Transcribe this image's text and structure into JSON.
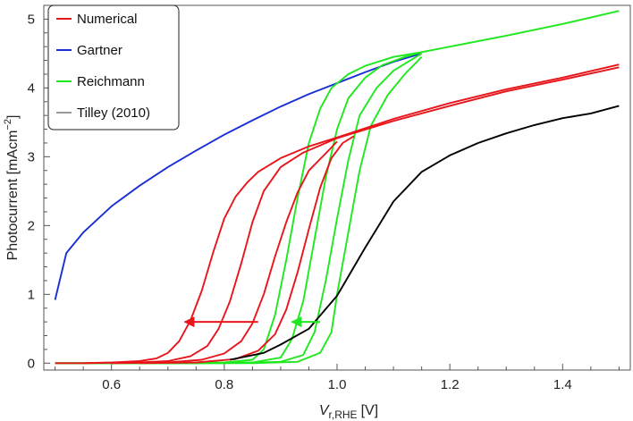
{
  "chart_data": {
    "type": "line",
    "title": "",
    "xlabel_main": "V",
    "xlabel_sub": "r,RHE",
    "xlabel_unit": "[V]",
    "ylabel_main": "Photocurrent [mAcm",
    "ylabel_sup": "−2",
    "ylabel_close": "]",
    "xlim": [
      0.48,
      1.52
    ],
    "ylim": [
      -0.1,
      5.2
    ],
    "x_ticks": [
      0.6,
      0.8,
      1.0,
      1.2,
      1.4
    ],
    "x_tick_labels": [
      "0.6",
      "0.8",
      "1.0",
      "1.2",
      "1.4"
    ],
    "y_ticks": [
      0,
      1,
      2,
      3,
      4,
      5
    ],
    "y_tick_labels": [
      "0",
      "1",
      "2",
      "3",
      "4",
      "5"
    ],
    "legend_position": "top-left",
    "legend": [
      {
        "label": "Numerical",
        "color": "#e8151b"
      },
      {
        "label": "Gartner",
        "color": "#1a2fd6"
      },
      {
        "label": "Reichmann",
        "color": "#1ee81e"
      },
      {
        "label": "Tilley (2010)",
        "color": "#999999"
      }
    ],
    "series": [
      {
        "name": "Gartner",
        "color": "#1a2fd6",
        "points": [
          [
            0.5,
            0.92
          ],
          [
            0.52,
            1.6
          ],
          [
            0.55,
            1.9
          ],
          [
            0.6,
            2.28
          ],
          [
            0.65,
            2.58
          ],
          [
            0.7,
            2.85
          ],
          [
            0.75,
            3.09
          ],
          [
            0.8,
            3.32
          ],
          [
            0.85,
            3.53
          ],
          [
            0.9,
            3.73
          ],
          [
            0.95,
            3.91
          ],
          [
            1.0,
            4.07
          ],
          [
            1.05,
            4.23
          ],
          [
            1.1,
            4.38
          ],
          [
            1.15,
            4.5
          ]
        ]
      },
      {
        "name": "Reichmann 1",
        "color": "#1ee81e",
        "points": [
          [
            0.5,
            0.0
          ],
          [
            0.7,
            0.0
          ],
          [
            0.8,
            0.01
          ],
          [
            0.85,
            0.05
          ],
          [
            0.87,
            0.2
          ],
          [
            0.89,
            0.7
          ],
          [
            0.91,
            1.5
          ],
          [
            0.93,
            2.4
          ],
          [
            0.95,
            3.2
          ],
          [
            0.97,
            3.7
          ],
          [
            0.99,
            4.0
          ],
          [
            1.02,
            4.2
          ],
          [
            1.05,
            4.32
          ],
          [
            1.1,
            4.45
          ],
          [
            1.15,
            4.52
          ],
          [
            1.2,
            4.6
          ],
          [
            1.3,
            4.76
          ],
          [
            1.4,
            4.93
          ],
          [
            1.5,
            5.12
          ]
        ]
      },
      {
        "name": "Reichmann 2",
        "color": "#1ee81e",
        "points": [
          [
            0.5,
            0.0
          ],
          [
            0.75,
            0.0
          ],
          [
            0.85,
            0.01
          ],
          [
            0.9,
            0.08
          ],
          [
            0.92,
            0.35
          ],
          [
            0.94,
            0.9
          ],
          [
            0.96,
            1.8
          ],
          [
            0.98,
            2.7
          ],
          [
            1.0,
            3.4
          ],
          [
            1.02,
            3.85
          ],
          [
            1.05,
            4.15
          ],
          [
            1.08,
            4.33
          ],
          [
            1.12,
            4.45
          ],
          [
            1.15,
            4.52
          ]
        ]
      },
      {
        "name": "Reichmann 3",
        "color": "#1ee81e",
        "points": [
          [
            0.5,
            0.0
          ],
          [
            0.8,
            0.0
          ],
          [
            0.9,
            0.02
          ],
          [
            0.94,
            0.12
          ],
          [
            0.96,
            0.45
          ],
          [
            0.98,
            1.2
          ],
          [
            1.0,
            2.1
          ],
          [
            1.02,
            2.95
          ],
          [
            1.04,
            3.6
          ],
          [
            1.07,
            4.0
          ],
          [
            1.1,
            4.25
          ],
          [
            1.13,
            4.4
          ],
          [
            1.15,
            4.5
          ]
        ]
      },
      {
        "name": "Reichmann 4",
        "color": "#1ee81e",
        "points": [
          [
            0.5,
            0.0
          ],
          [
            0.85,
            0.0
          ],
          [
            0.93,
            0.02
          ],
          [
            0.97,
            0.15
          ],
          [
            0.99,
            0.45
          ],
          [
            1.0,
            1.0
          ],
          [
            1.02,
            1.9
          ],
          [
            1.04,
            2.8
          ],
          [
            1.06,
            3.45
          ],
          [
            1.09,
            3.9
          ],
          [
            1.12,
            4.2
          ],
          [
            1.15,
            4.45
          ]
        ]
      },
      {
        "name": "Numerical 1",
        "color": "#e8151b",
        "points": [
          [
            0.5,
            0.0
          ],
          [
            0.55,
            0.0
          ],
          [
            0.6,
            0.01
          ],
          [
            0.65,
            0.03
          ],
          [
            0.68,
            0.07
          ],
          [
            0.7,
            0.15
          ],
          [
            0.72,
            0.32
          ],
          [
            0.74,
            0.62
          ],
          [
            0.76,
            1.05
          ],
          [
            0.78,
            1.6
          ],
          [
            0.8,
            2.1
          ],
          [
            0.82,
            2.42
          ],
          [
            0.84,
            2.62
          ],
          [
            0.86,
            2.78
          ],
          [
            0.9,
            2.98
          ],
          [
            0.95,
            3.15
          ],
          [
            1.0,
            3.28
          ],
          [
            1.1,
            3.55
          ],
          [
            1.2,
            3.78
          ],
          [
            1.3,
            3.98
          ],
          [
            1.4,
            4.15
          ],
          [
            1.5,
            4.34
          ]
        ]
      },
      {
        "name": "Numerical 2",
        "color": "#e8151b",
        "points": [
          [
            0.55,
            0.0
          ],
          [
            0.65,
            0.01
          ],
          [
            0.7,
            0.03
          ],
          [
            0.74,
            0.1
          ],
          [
            0.77,
            0.25
          ],
          [
            0.79,
            0.5
          ],
          [
            0.81,
            0.9
          ],
          [
            0.83,
            1.45
          ],
          [
            0.85,
            2.05
          ],
          [
            0.87,
            2.5
          ],
          [
            0.9,
            2.85
          ],
          [
            0.94,
            3.06
          ],
          [
            1.0,
            3.27
          ],
          [
            1.1,
            3.52
          ],
          [
            1.2,
            3.74
          ],
          [
            1.3,
            3.95
          ],
          [
            1.4,
            4.12
          ],
          [
            1.5,
            4.3
          ]
        ]
      },
      {
        "name": "Numerical 3",
        "color": "#e8151b",
        "points": [
          [
            0.6,
            0.0
          ],
          [
            0.7,
            0.01
          ],
          [
            0.76,
            0.05
          ],
          [
            0.8,
            0.14
          ],
          [
            0.83,
            0.32
          ],
          [
            0.85,
            0.58
          ],
          [
            0.87,
            1.0
          ],
          [
            0.89,
            1.55
          ],
          [
            0.91,
            2.05
          ],
          [
            0.93,
            2.48
          ],
          [
            0.95,
            2.8
          ],
          [
            0.98,
            3.05
          ],
          [
            1.0,
            3.22
          ]
        ]
      },
      {
        "name": "Numerical 4",
        "color": "#e8151b",
        "points": [
          [
            0.65,
            0.0
          ],
          [
            0.75,
            0.01
          ],
          [
            0.82,
            0.06
          ],
          [
            0.86,
            0.18
          ],
          [
            0.89,
            0.42
          ],
          [
            0.91,
            0.78
          ],
          [
            0.93,
            1.32
          ],
          [
            0.95,
            1.95
          ],
          [
            0.97,
            2.55
          ],
          [
            0.99,
            2.98
          ],
          [
            1.01,
            3.2
          ],
          [
            1.03,
            3.3
          ]
        ]
      },
      {
        "name": "Tilley (2010)",
        "color": "#000000",
        "points": [
          [
            0.81,
            0.05
          ],
          [
            0.87,
            0.15
          ],
          [
            0.9,
            0.27
          ],
          [
            0.95,
            0.5
          ],
          [
            1.0,
            0.98
          ],
          [
            1.05,
            1.68
          ],
          [
            1.1,
            2.35
          ],
          [
            1.15,
            2.78
          ],
          [
            1.2,
            3.02
          ],
          [
            1.25,
            3.2
          ],
          [
            1.3,
            3.34
          ],
          [
            1.35,
            3.46
          ],
          [
            1.4,
            3.56
          ],
          [
            1.45,
            3.63
          ],
          [
            1.5,
            3.74
          ]
        ]
      }
    ],
    "annotations": [
      {
        "type": "arrow",
        "color": "#e8151b",
        "from": [
          0.86,
          0.6
        ],
        "to": [
          0.73,
          0.6
        ]
      },
      {
        "type": "arrow",
        "color": "#1ee81e",
        "from": [
          0.97,
          0.6
        ],
        "to": [
          0.92,
          0.6
        ]
      }
    ]
  }
}
